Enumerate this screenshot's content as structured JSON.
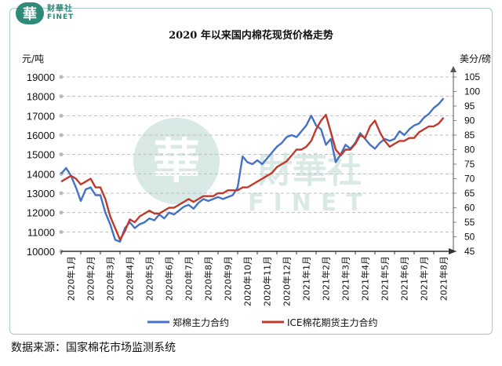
{
  "logo": {
    "glyph": "華",
    "cn": "财華社",
    "en": "FINET"
  },
  "watermark": {
    "glyph": "華",
    "cn": "財華社",
    "en": "FINET"
  },
  "source": "数据来源：国家棉花市场监测系统",
  "chart_data": {
    "type": "line",
    "title": "2020 年以来国内棉花现货价格走势",
    "left_axis": {
      "unit": "元/吨",
      "range": [
        10000,
        19000
      ],
      "ticks": [
        "10000",
        "11000",
        "12000",
        "13000",
        "14000",
        "15000",
        "16000",
        "17000",
        "18000",
        "19000"
      ]
    },
    "right_axis": {
      "unit": "美分/磅",
      "range": [
        45,
        105
      ],
      "ticks": [
        "45",
        "50",
        "55",
        "60",
        "65",
        "70",
        "75",
        "80",
        "85",
        "90",
        "95",
        "100",
        "105"
      ]
    },
    "x_ticks": [
      "2020年1月",
      "2020年2月",
      "2020年3月",
      "2020年4月",
      "2020年5月",
      "2020年6月",
      "2020年7月",
      "2020年8月",
      "2020年9月",
      "2020年10月",
      "2020年11月",
      "2020年12月",
      "2021年1月",
      "2021年2月",
      "2021年3月",
      "2021年4月",
      "2021年5月",
      "2021年6月",
      "2021年7月",
      "2021年8月"
    ],
    "grid": "horizontal-dashed",
    "legend": "bottom-center",
    "colors": {
      "series1": "#4472c4",
      "series2": "#c0392b",
      "grid": "#bfbfbf",
      "accent": "#2f8a79"
    },
    "series": [
      {
        "name": "郑棉主力合约",
        "axis": "left",
        "x": [
          0,
          0.25,
          0.5,
          0.75,
          1,
          1.25,
          1.5,
          1.75,
          2,
          2.25,
          2.5,
          2.75,
          3,
          3.25,
          3.5,
          3.75,
          4,
          4.25,
          4.5,
          4.75,
          5,
          5.25,
          5.5,
          5.75,
          6,
          6.25,
          6.5,
          6.75,
          7,
          7.25,
          7.5,
          7.75,
          8,
          8.25,
          8.5,
          8.75,
          9,
          9.25,
          9.5,
          9.75,
          10,
          10.25,
          10.5,
          10.75,
          11,
          11.25,
          11.5,
          11.75,
          12,
          12.25,
          12.5,
          12.75,
          13,
          13.25,
          13.5,
          13.75,
          14,
          14.25,
          14.5,
          14.75,
          15,
          15.25,
          15.5,
          15.75,
          16,
          16.25,
          16.5,
          16.75,
          17,
          17.25,
          17.5,
          17.75,
          18,
          18.25,
          18.5,
          18.75,
          19,
          19.25,
          19.5
        ],
        "values": [
          14000,
          14300,
          13900,
          13300,
          12600,
          13200,
          13300,
          12900,
          12900,
          12000,
          11400,
          10600,
          10500,
          11200,
          11500,
          11200,
          11400,
          11500,
          11700,
          11600,
          11900,
          11700,
          12000,
          11900,
          12100,
          12300,
          12400,
          12200,
          12500,
          12700,
          12600,
          12700,
          12800,
          12700,
          12800,
          12900,
          13300,
          14900,
          14600,
          14500,
          14700,
          14500,
          14800,
          15100,
          15400,
          15600,
          15900,
          16000,
          15900,
          16200,
          16500,
          17000,
          16500,
          16300,
          15500,
          15800,
          14600,
          15000,
          15500,
          15300,
          15600,
          16100,
          15800,
          15500,
          15300,
          15600,
          15800,
          15700,
          15800,
          16200,
          16000,
          16300,
          16500,
          16600,
          16900,
          17100,
          17400,
          17600,
          17900
        ]
      },
      {
        "name": "ICE棉花期货主力合约",
        "axis": "right",
        "x": [
          0,
          0.25,
          0.5,
          0.75,
          1,
          1.25,
          1.5,
          1.75,
          2,
          2.25,
          2.5,
          2.75,
          3,
          3.25,
          3.5,
          3.75,
          4,
          4.25,
          4.5,
          4.75,
          5,
          5.25,
          5.5,
          5.75,
          6,
          6.25,
          6.5,
          6.75,
          7,
          7.25,
          7.5,
          7.75,
          8,
          8.25,
          8.5,
          8.75,
          9,
          9.25,
          9.5,
          9.75,
          10,
          10.25,
          10.5,
          10.75,
          11,
          11.25,
          11.5,
          11.75,
          12,
          12.25,
          12.5,
          12.75,
          13,
          13.25,
          13.5,
          13.75,
          14,
          14.25,
          14.5,
          14.75,
          15,
          15.25,
          15.5,
          15.75,
          16,
          16.25,
          16.5,
          16.75,
          17,
          17.25,
          17.5,
          17.75,
          18,
          18.25,
          18.5,
          18.75,
          19,
          19.25,
          19.5
        ],
        "values": [
          69,
          70,
          71,
          70,
          68,
          69,
          70,
          67,
          67,
          63,
          57,
          53,
          49,
          52,
          56,
          55,
          57,
          58,
          59,
          58,
          58,
          59,
          60,
          60,
          61,
          62,
          63,
          62,
          63,
          64,
          64,
          64,
          65,
          65,
          66,
          66,
          66,
          67,
          67,
          68,
          69,
          70,
          71,
          72,
          74,
          75,
          76,
          78,
          80,
          80,
          81,
          83,
          87,
          90,
          92,
          86,
          80,
          78,
          80,
          80,
          82,
          85,
          84,
          88,
          90,
          86,
          83,
          81,
          82,
          83,
          83,
          84,
          84,
          86,
          87,
          88,
          88,
          89,
          91
        ]
      }
    ]
  }
}
